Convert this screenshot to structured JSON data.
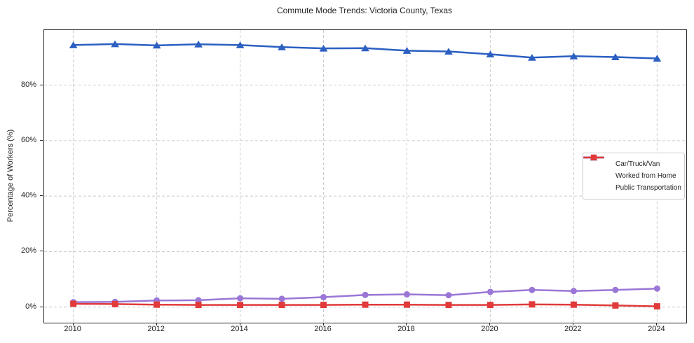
{
  "title": "Commute Mode Trends: Victoria County, Texas",
  "axes": {
    "ylabel": "Percentage of Workers (%)",
    "xlabel": ""
  },
  "chart_data": {
    "type": "line",
    "title": "Commute Mode Trends: Victoria County, Texas",
    "xlabel": "",
    "ylabel": "Percentage of Workers (%)",
    "x": [
      2010,
      2011,
      2012,
      2013,
      2014,
      2015,
      2016,
      2017,
      2018,
      2019,
      2020,
      2021,
      2022,
      2023,
      2024
    ],
    "series": [
      {
        "name": "Car/Truck/Van",
        "marker": "triangle",
        "color": "#2b5fc1",
        "values": [
          94.4,
          94.8,
          94.3,
          94.7,
          94.4,
          93.7,
          93.2,
          93.3,
          92.4,
          92.1,
          91.1,
          89.9,
          90.4,
          90.1,
          89.6
        ]
      },
      {
        "name": "Worked from Home",
        "marker": "circle",
        "color": "#9a76d6",
        "values": [
          1.8,
          1.9,
          2.4,
          2.5,
          3.2,
          3.0,
          3.6,
          4.4,
          4.6,
          4.3,
          5.5,
          6.2,
          5.8,
          6.2,
          6.7
        ]
      },
      {
        "name": "Public Transportation",
        "marker": "square",
        "color": "#e13a3a",
        "values": [
          1.2,
          1.1,
          0.9,
          0.8,
          0.8,
          0.8,
          0.8,
          0.9,
          0.9,
          0.8,
          0.8,
          1.0,
          0.9,
          0.6,
          0.3
        ]
      }
    ],
    "xticks": [
      2010,
      2012,
      2014,
      2016,
      2018,
      2020,
      2022,
      2024
    ],
    "xtick_labels": [
      "2010",
      "2012",
      "2014",
      "2016",
      "2018",
      "2020",
      "2022",
      "2024"
    ],
    "ytick_values": [
      0,
      20,
      40,
      60,
      80
    ],
    "ytick_labels": [
      "0%",
      "20%",
      "40%",
      "60%",
      "80%"
    ],
    "xlim": [
      2009.3,
      2024.7
    ],
    "ylim": [
      -5.6,
      99.8
    ],
    "grid": true,
    "grid_style": "dashed",
    "grid_color": "#cccccc",
    "legend_position": "center right"
  }
}
